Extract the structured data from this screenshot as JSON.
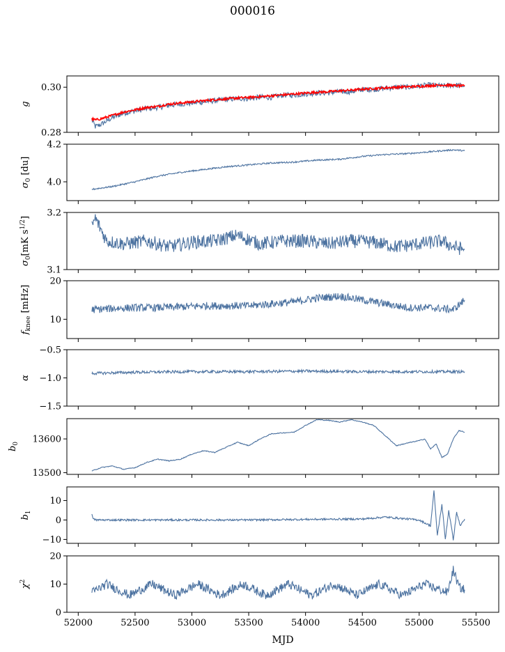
{
  "figure": {
    "title": "000016",
    "xlabel": "MJD"
  },
  "colors": {
    "series": "#4c72a0",
    "overlay": "#ff0000",
    "axis": "#000000"
  },
  "chart_data": [
    {
      "type": "line",
      "ylabel": "g",
      "xlim": [
        51900,
        55700
      ],
      "ylim": [
        0.28,
        0.305
      ],
      "xticks": [
        52000,
        52500,
        53000,
        53500,
        54000,
        54500,
        55000,
        55500
      ],
      "yticks": [
        0.28,
        0.3
      ],
      "ytick_labels": [
        "0.28",
        "0.30"
      ],
      "series": [
        {
          "color": "#4c72a0",
          "x": [
            52120,
            52150,
            52200,
            52300,
            52400,
            52500,
            52600,
            52700,
            52800,
            52900,
            53000,
            53100,
            53200,
            53300,
            53400,
            53500,
            53600,
            53700,
            53800,
            53900,
            54000,
            54100,
            54200,
            54300,
            54400,
            54500,
            54600,
            54700,
            54800,
            54900,
            55000,
            55100,
            55200,
            55300,
            55400
          ],
          "y": [
            0.2855,
            0.2825,
            0.2835,
            0.2865,
            0.2885,
            0.2895,
            0.2905,
            0.291,
            0.292,
            0.2925,
            0.293,
            0.2935,
            0.294,
            0.2945,
            0.295,
            0.295,
            0.2955,
            0.2955,
            0.2965,
            0.2965,
            0.297,
            0.2975,
            0.2975,
            0.298,
            0.298,
            0.299,
            0.299,
            0.2995,
            0.3,
            0.3,
            0.3005,
            0.301,
            0.3005,
            0.301,
            0.3005
          ],
          "noise": 0.0012
        },
        {
          "color": "#ff0000",
          "x": [
            52120,
            52150,
            52200,
            52300,
            52400,
            52500,
            52600,
            52700,
            52800,
            52900,
            53000,
            53100,
            53200,
            53300,
            53400,
            53500,
            53600,
            53700,
            53800,
            53900,
            54000,
            54100,
            54200,
            54300,
            54400,
            54500,
            54600,
            54700,
            54800,
            54900,
            55000,
            55100,
            55200,
            55300,
            55400
          ],
          "y": [
            0.286,
            0.2855,
            0.286,
            0.2875,
            0.289,
            0.29,
            0.291,
            0.2915,
            0.2925,
            0.293,
            0.2935,
            0.294,
            0.2945,
            0.2948,
            0.2952,
            0.2955,
            0.2958,
            0.2962,
            0.2966,
            0.297,
            0.2974,
            0.2978,
            0.298,
            0.2984,
            0.2987,
            0.2991,
            0.2994,
            0.2997,
            0.3,
            0.3002,
            0.3004,
            0.3007,
            0.301,
            0.3008,
            0.3005
          ],
          "noise": 0.0005
        }
      ]
    },
    {
      "type": "line",
      "ylabel": "σ0 [du]",
      "xlim": [
        51900,
        55700
      ],
      "ylim": [
        3.9,
        4.2
      ],
      "xticks": [
        52000,
        52500,
        53000,
        53500,
        54000,
        54500,
        55000,
        55500
      ],
      "yticks": [
        4.0,
        4.2
      ],
      "ytick_labels": [
        "4.0",
        "4.2"
      ],
      "series": [
        {
          "color": "#4c72a0",
          "x": [
            52120,
            52300,
            52500,
            52700,
            52900,
            53100,
            53300,
            53500,
            53700,
            53900,
            54100,
            54300,
            54500,
            54700,
            54900,
            55100,
            55300,
            55400
          ],
          "y": [
            3.96,
            3.975,
            4.0,
            4.03,
            4.05,
            4.065,
            4.08,
            4.09,
            4.1,
            4.105,
            4.115,
            4.12,
            4.135,
            4.145,
            4.15,
            4.16,
            4.17,
            4.165
          ],
          "noise": 0.004
        }
      ]
    },
    {
      "type": "line",
      "ylabel": "σ0[mK s^1/2]",
      "xlim": [
        51900,
        55700
      ],
      "ylim": [
        3.1,
        3.2
      ],
      "xticks": [
        52000,
        52500,
        53000,
        53500,
        54000,
        54500,
        55000,
        55500
      ],
      "yticks": [
        3.1,
        3.2
      ],
      "ytick_labels": [
        "3.1",
        "3.2"
      ],
      "series": [
        {
          "color": "#4c72a0",
          "x": [
            52120,
            52150,
            52200,
            52250,
            52400,
            52600,
            52800,
            53000,
            53200,
            53400,
            53600,
            53800,
            54000,
            54200,
            54400,
            54600,
            54800,
            55000,
            55200,
            55300,
            55400
          ],
          "y": [
            3.175,
            3.19,
            3.17,
            3.15,
            3.145,
            3.15,
            3.14,
            3.148,
            3.15,
            3.16,
            3.145,
            3.15,
            3.15,
            3.145,
            3.15,
            3.148,
            3.14,
            3.145,
            3.15,
            3.14,
            3.135
          ],
          "noise": 0.012
        }
      ]
    },
    {
      "type": "line",
      "ylabel": "fknee [mHz]",
      "xlim": [
        51900,
        55700
      ],
      "ylim": [
        5,
        20
      ],
      "xticks": [
        52000,
        52500,
        53000,
        53500,
        54000,
        54500,
        55000,
        55500
      ],
      "yticks": [
        10,
        20
      ],
      "ytick_labels": [
        "10",
        "20"
      ],
      "series": [
        {
          "color": "#4c72a0",
          "x": [
            52120,
            52300,
            52500,
            52700,
            52900,
            53100,
            53300,
            53500,
            53700,
            53900,
            54100,
            54300,
            54500,
            54700,
            54900,
            55100,
            55300,
            55400
          ],
          "y": [
            12.5,
            12.8,
            13.0,
            13.0,
            13.2,
            13.5,
            13.5,
            13.5,
            14.0,
            14.5,
            15.5,
            16.0,
            15.0,
            14.0,
            13.0,
            13.0,
            12.5,
            15.0
          ],
          "noise": 1.0
        }
      ]
    },
    {
      "type": "line",
      "ylabel": "α",
      "xlim": [
        51900,
        55700
      ],
      "ylim": [
        -1.5,
        -0.5
      ],
      "xticks": [
        52000,
        52500,
        53000,
        53500,
        54000,
        54500,
        55000,
        55500
      ],
      "yticks": [
        -1.5,
        -1.0,
        -0.5
      ],
      "ytick_labels": [
        "−1.5",
        "−1.0",
        "−0.5"
      ],
      "series": [
        {
          "color": "#4c72a0",
          "x": [
            52120,
            52500,
            53000,
            53500,
            54000,
            54500,
            55000,
            55400
          ],
          "y": [
            -0.92,
            -0.9,
            -0.89,
            -0.89,
            -0.88,
            -0.89,
            -0.89,
            -0.89
          ],
          "noise": 0.025
        }
      ]
    },
    {
      "type": "line",
      "ylabel": "b0",
      "xlim": [
        51900,
        55700
      ],
      "ylim": [
        13495,
        13660
      ],
      "xticks": [
        52000,
        52500,
        53000,
        53500,
        54000,
        54500,
        55000,
        55500
      ],
      "yticks": [
        13500,
        13600
      ],
      "ytick_labels": [
        "13500",
        "13600"
      ],
      "series": [
        {
          "color": "#4c72a0",
          "x": [
            52120,
            52200,
            52300,
            52400,
            52500,
            52600,
            52700,
            52800,
            52900,
            53000,
            53100,
            53200,
            53300,
            53400,
            53450,
            53500,
            53600,
            53700,
            53800,
            53900,
            54000,
            54100,
            54200,
            54300,
            54400,
            54500,
            54600,
            54700,
            54800,
            54900,
            55000,
            55050,
            55100,
            55150,
            55200,
            55250,
            55300,
            55350,
            55400
          ],
          "y": [
            13505,
            13515,
            13520,
            13510,
            13515,
            13530,
            13540,
            13535,
            13540,
            13555,
            13565,
            13560,
            13575,
            13590,
            13585,
            13580,
            13600,
            13615,
            13618,
            13620,
            13640,
            13657,
            13655,
            13650,
            13657,
            13650,
            13640,
            13610,
            13580,
            13588,
            13595,
            13600,
            13570,
            13585,
            13545,
            13555,
            13600,
            13625,
            13620
          ],
          "noise": 1.2
        }
      ]
    },
    {
      "type": "line",
      "ylabel": "b1",
      "xlim": [
        51900,
        55700
      ],
      "ylim": [
        -12,
        17
      ],
      "xticks": [
        52000,
        52500,
        53000,
        53500,
        54000,
        54500,
        55000,
        55500
      ],
      "yticks": [
        -10,
        0,
        10
      ],
      "ytick_labels": [
        "−10",
        "0",
        "10"
      ],
      "series": [
        {
          "color": "#4c72a0",
          "x": [
            52120,
            52130,
            52160,
            52500,
            53000,
            53500,
            54000,
            54500,
            54700,
            54800,
            55000,
            55100,
            55130,
            55160,
            55200,
            55230,
            55260,
            55300,
            55330,
            55360,
            55400
          ],
          "y": [
            3.5,
            0.5,
            0.0,
            0.0,
            0.0,
            0.0,
            0.3,
            0.5,
            1.5,
            1.0,
            0.0,
            -3,
            15,
            -8,
            8,
            -10,
            5,
            -10,
            4,
            -3,
            0.5
          ],
          "noise": 0.5
        }
      ]
    },
    {
      "type": "line",
      "ylabel": "χ2",
      "xlim": [
        51900,
        55700
      ],
      "ylim": [
        0,
        20
      ],
      "xticks": [
        52000,
        52500,
        53000,
        53500,
        54000,
        54500,
        55000,
        55500
      ],
      "xtick_labels": [
        "52000",
        "52500",
        "53000",
        "53500",
        "54000",
        "54500",
        "55000",
        "55500"
      ],
      "yticks": [
        0,
        10,
        20
      ],
      "ytick_labels": [
        "0",
        "10",
        "20"
      ],
      "series": [
        {
          "color": "#4c72a0",
          "x": [
            52120,
            52250,
            52450,
            52650,
            52850,
            53050,
            53250,
            53450,
            53650,
            53850,
            54050,
            54250,
            54450,
            54650,
            54850,
            55050,
            55250,
            55300,
            55350,
            55400
          ],
          "y": [
            7,
            10,
            6,
            10,
            6,
            10,
            6,
            10,
            6,
            10,
            6,
            10,
            6,
            10,
            6,
            10,
            7,
            15,
            9,
            8
          ],
          "noise": 1.6
        }
      ]
    }
  ]
}
